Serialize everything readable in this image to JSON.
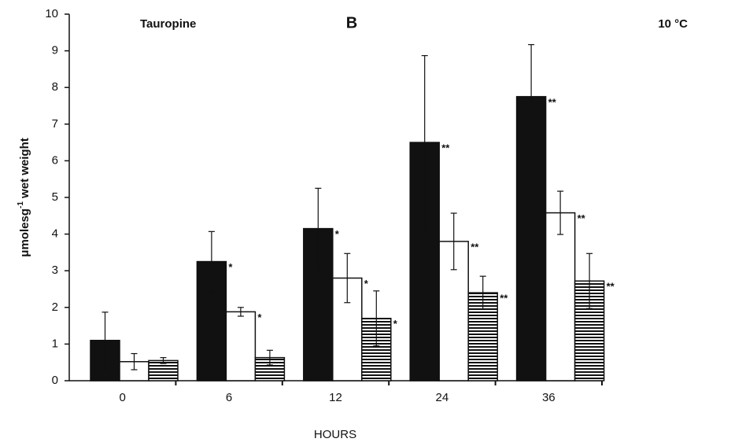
{
  "chart_data": {
    "type": "bar",
    "title": "B",
    "annotations": [
      "Tauropine",
      "10 °C"
    ],
    "ylabel_parts": [
      "μmolesg",
      "-1",
      " wet weight"
    ],
    "xlabel": "HOURS",
    "categories": [
      "0",
      "6",
      "12",
      "24",
      "36"
    ],
    "ylim": [
      0,
      10
    ],
    "yticks": [
      0,
      1,
      2,
      3,
      4,
      5,
      6,
      7,
      8,
      9,
      10
    ],
    "series": [
      {
        "color": "#111111",
        "pattern": "solid",
        "values": [
          1.1,
          3.25,
          4.15,
          6.5,
          7.75
        ],
        "errors": [
          0.77,
          0.82,
          1.1,
          2.37,
          1.42
        ],
        "significance": [
          null,
          "*",
          "*",
          "**",
          "**"
        ]
      },
      {
        "color": "#ffffff",
        "pattern": "solid",
        "values": [
          0.52,
          1.88,
          2.8,
          3.8,
          4.58
        ],
        "errors": [
          0.22,
          0.12,
          0.67,
          0.77,
          0.59
        ],
        "significance": [
          null,
          "*",
          "*",
          "**",
          "**"
        ]
      },
      {
        "color": "#111111",
        "pattern": "hstripe",
        "values": [
          0.55,
          0.63,
          1.7,
          2.4,
          2.72
        ],
        "errors": [
          0.08,
          0.2,
          0.75,
          0.45,
          0.75
        ],
        "significance": [
          null,
          null,
          "*",
          "**",
          "**"
        ]
      }
    ]
  }
}
